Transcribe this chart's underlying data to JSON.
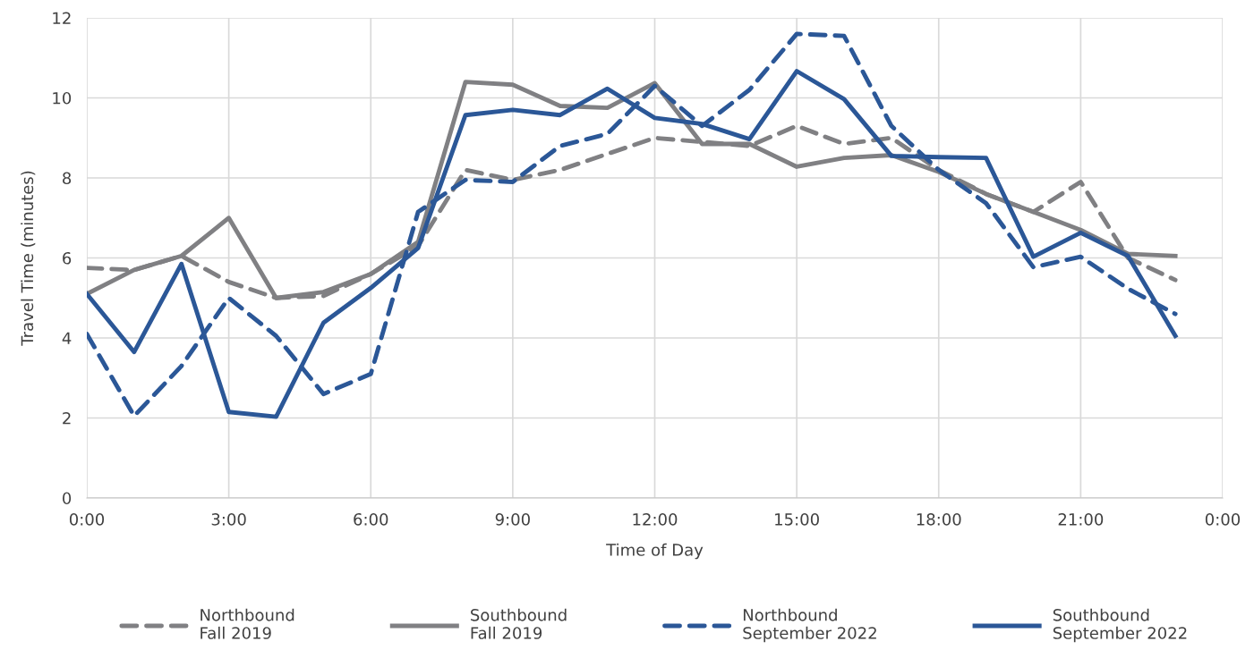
{
  "chart_data": {
    "type": "line",
    "xlabel": "Time of Day",
    "ylabel": "Travel Time (minutes)",
    "x": [
      0,
      1,
      2,
      3,
      4,
      5,
      6,
      7,
      8,
      9,
      10,
      11,
      12,
      13,
      14,
      15,
      16,
      17,
      18,
      19,
      20,
      21,
      22,
      23
    ],
    "series": [
      {
        "name": "Northbound\nFall 2019",
        "color": "#808083",
        "line_style": "dashed",
        "values": [
          5.75,
          5.7,
          6.05,
          5.4,
          5.0,
          5.05,
          5.6,
          6.3,
          8.2,
          7.95,
          8.2,
          8.6,
          9.0,
          8.9,
          8.8,
          9.3,
          8.85,
          9.0,
          8.2,
          7.6,
          7.15,
          7.9,
          6.0,
          5.45
        ]
      },
      {
        "name": "Southbound\nFall 2019",
        "color": "#808083",
        "line_style": "solid",
        "values": [
          5.1,
          5.7,
          6.05,
          7.0,
          5.0,
          5.15,
          5.6,
          6.4,
          10.4,
          10.33,
          9.8,
          9.75,
          10.37,
          8.85,
          8.85,
          8.28,
          8.5,
          8.57,
          8.15,
          7.6,
          7.15,
          6.7,
          6.1,
          6.05
        ]
      },
      {
        "name": "Northbound\nSeptember 2022",
        "color": "#2b5797",
        "line_style": "dashed",
        "values": [
          4.1,
          2.05,
          3.3,
          5.0,
          4.05,
          2.6,
          3.1,
          7.15,
          7.95,
          7.9,
          8.8,
          9.1,
          10.3,
          9.3,
          10.2,
          11.6,
          11.55,
          9.3,
          8.2,
          7.37,
          5.77,
          6.03,
          5.23,
          4.6
        ]
      },
      {
        "name": "Southbound\nSeptember 2022",
        "color": "#2b5797",
        "line_style": "solid",
        "values": [
          5.1,
          3.65,
          5.85,
          2.15,
          2.03,
          4.38,
          5.25,
          6.25,
          9.57,
          9.7,
          9.57,
          10.23,
          9.5,
          9.35,
          8.97,
          10.67,
          9.97,
          8.55,
          8.52,
          8.5,
          6.03,
          6.63,
          6.05,
          4.05
        ]
      }
    ],
    "xlim": [
      0,
      24
    ],
    "xticks": [
      {
        "value": 0,
        "label": "0:00"
      },
      {
        "value": 3,
        "label": "3:00"
      },
      {
        "value": 6,
        "label": "6:00"
      },
      {
        "value": 9,
        "label": "9:00"
      },
      {
        "value": 12,
        "label": "12:00"
      },
      {
        "value": 15,
        "label": "15:00"
      },
      {
        "value": 18,
        "label": "18:00"
      },
      {
        "value": 21,
        "label": "21:00"
      },
      {
        "value": 24,
        "label": "0:00"
      }
    ],
    "ylim": [
      0,
      12
    ],
    "yticks": [
      0,
      2,
      4,
      6,
      8,
      10,
      12
    ],
    "grid": true,
    "legend": "bottom",
    "marker": "none"
  }
}
